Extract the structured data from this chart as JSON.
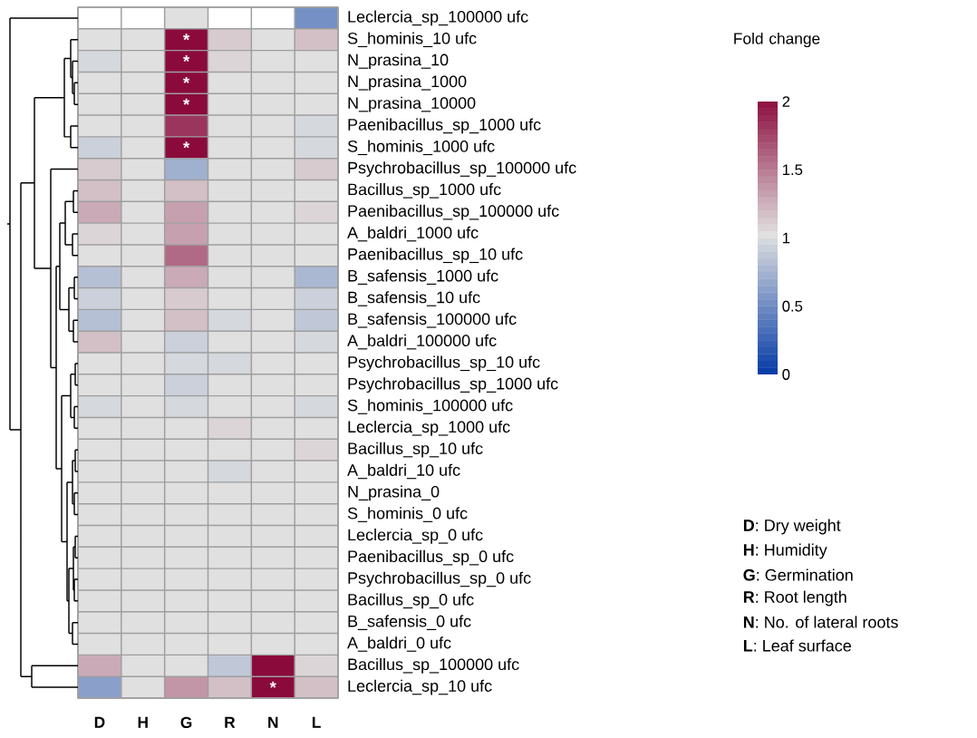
{
  "chart_data": {
    "type": "heatmap",
    "categories": [
      "D",
      "H",
      "G",
      "R",
      "N",
      "L"
    ],
    "y_categories": [
      "Leclercia_sp_100000 ufc",
      "S_hominis_10 ufc",
      "N_prasina_10",
      "N_prasina_1000",
      "N_prasina_10000",
      "Paenibacillus_sp_1000 ufc",
      "S_hominis_1000 ufc",
      "Psychrobacillus_sp_100000 ufc",
      "Bacillus_sp_1000 ufc",
      "Paenibacillus_sp_100000 ufc",
      "A_baldri_1000 ufc",
      "Paenibacillus_sp_10 ufc",
      "B_safensis_1000 ufc",
      "B_safensis_10 ufc",
      "B_safensis_100000 ufc",
      "A_baldri_100000 ufc",
      "Psychrobacillus_sp_10 ufc",
      "Psychrobacillus_sp_1000 ufc",
      "S_hominis_100000 ufc",
      "Leclercia_sp_1000 ufc",
      "Bacillus_sp_10 ufc",
      "A_baldri_10 ufc",
      "N_prasina_0",
      "S_hominis_0 ufc",
      "Leclercia_sp_0 ufc",
      "Paenibacillus_sp_0 ufc",
      "Psychrobacillus_sp_0 ufc",
      "Bacillus_sp_0 ufc",
      "B_safensis_0 ufc",
      "A_baldri_0 ufc",
      "Bacillus_sp_100000 ufc",
      "Leclercia_sp_10 ufc"
    ],
    "cells": [
      [
        null,
        null,
        1,
        null,
        null,
        0.5
      ],
      [
        1,
        1,
        2,
        1.1,
        1,
        1.15
      ],
      [
        0.95,
        1,
        2,
        1.05,
        1,
        1
      ],
      [
        1,
        1,
        2,
        1,
        1,
        1
      ],
      [
        1,
        1,
        2,
        1,
        1,
        1
      ],
      [
        1,
        1,
        1.8,
        1,
        1,
        0.95
      ],
      [
        0.9,
        1,
        2,
        1,
        1,
        0.95
      ],
      [
        1.1,
        1,
        0.7,
        1,
        1,
        1.1
      ],
      [
        1.15,
        1,
        1.15,
        1,
        1,
        1
      ],
      [
        1.25,
        1,
        1.3,
        1,
        1,
        1.05
      ],
      [
        1.05,
        1,
        1.3,
        1,
        1,
        1
      ],
      [
        1,
        1,
        1.55,
        1,
        1,
        1
      ],
      [
        0.8,
        1,
        1.25,
        1,
        1,
        0.75
      ],
      [
        0.9,
        1,
        1.1,
        1,
        1,
        0.9
      ],
      [
        0.8,
        1,
        1.15,
        0.95,
        1,
        0.85
      ],
      [
        1.15,
        1,
        0.9,
        1,
        1,
        0.95
      ],
      [
        1,
        1,
        0.95,
        0.95,
        1,
        1
      ],
      [
        1,
        1,
        0.9,
        1,
        1,
        1
      ],
      [
        0.95,
        1,
        0.95,
        1,
        1,
        0.95
      ],
      [
        1,
        1,
        1,
        1.05,
        1,
        1
      ],
      [
        1,
        1,
        1,
        1,
        1,
        1.05
      ],
      [
        1,
        1,
        1,
        0.95,
        1,
        1
      ],
      [
        1,
        1,
        1,
        1,
        1,
        1
      ],
      [
        1,
        1,
        1,
        1,
        1,
        1
      ],
      [
        1,
        1,
        1,
        1,
        1,
        1
      ],
      [
        1,
        1,
        1,
        1,
        1,
        1
      ],
      [
        1,
        1,
        1,
        1,
        1,
        1
      ],
      [
        1,
        1,
        1,
        1,
        1,
        1
      ],
      [
        1,
        1,
        1,
        1,
        1,
        1
      ],
      [
        1,
        1,
        1,
        1,
        1,
        1
      ],
      [
        1.25,
        1,
        1,
        0.85,
        2,
        1.05
      ],
      [
        0.6,
        1,
        1.35,
        1.15,
        2,
        1.15
      ]
    ],
    "cell_labels": [
      [
        null,
        null,
        null,
        null,
        null,
        null
      ],
      [
        null,
        null,
        "*",
        null,
        null,
        null
      ],
      [
        null,
        null,
        "*",
        null,
        null,
        null
      ],
      [
        null,
        null,
        "*",
        null,
        null,
        null
      ],
      [
        null,
        null,
        "*",
        null,
        null,
        null
      ],
      [
        null,
        null,
        null,
        null,
        null,
        null
      ],
      [
        null,
        null,
        "*",
        null,
        null,
        null
      ],
      [
        null,
        null,
        null,
        null,
        null,
        null
      ],
      [
        null,
        null,
        null,
        null,
        null,
        null
      ],
      [
        null,
        null,
        null,
        null,
        null,
        null
      ],
      [
        null,
        null,
        null,
        null,
        null,
        null
      ],
      [
        null,
        null,
        null,
        null,
        null,
        null
      ],
      [
        null,
        null,
        null,
        null,
        null,
        null
      ],
      [
        null,
        null,
        null,
        null,
        null,
        null
      ],
      [
        null,
        null,
        null,
        null,
        null,
        null
      ],
      [
        null,
        null,
        null,
        null,
        null,
        null
      ],
      [
        null,
        null,
        null,
        null,
        null,
        null
      ],
      [
        null,
        null,
        null,
        null,
        null,
        null
      ],
      [
        null,
        null,
        null,
        null,
        null,
        null
      ],
      [
        null,
        null,
        null,
        null,
        null,
        null
      ],
      [
        null,
        null,
        null,
        null,
        null,
        null
      ],
      [
        null,
        null,
        null,
        null,
        null,
        null
      ],
      [
        null,
        null,
        null,
        null,
        null,
        null
      ],
      [
        null,
        null,
        null,
        null,
        null,
        null
      ],
      [
        null,
        null,
        null,
        null,
        null,
        null
      ],
      [
        null,
        null,
        null,
        null,
        null,
        null
      ],
      [
        null,
        null,
        null,
        null,
        null,
        null
      ],
      [
        null,
        null,
        null,
        null,
        null,
        null
      ],
      [
        null,
        null,
        null,
        null,
        null,
        null
      ],
      [
        null,
        null,
        null,
        null,
        null,
        null
      ],
      [
        null,
        null,
        null,
        null,
        null,
        null
      ],
      [
        null,
        null,
        null,
        null,
        "*",
        null
      ]
    ],
    "clim": [
      0,
      2
    ],
    "cticks": [
      0,
      0.5,
      1,
      1.5,
      2
    ],
    "clabel": "Fold change",
    "annotations": [
      "**D**: Dry weight",
      "**H**: Humidity",
      "**G**: Germination",
      "**R**: Root length",
      "**N**: No. of lateral roots",
      "**L**: Leaf surface"
    ]
  }
}
